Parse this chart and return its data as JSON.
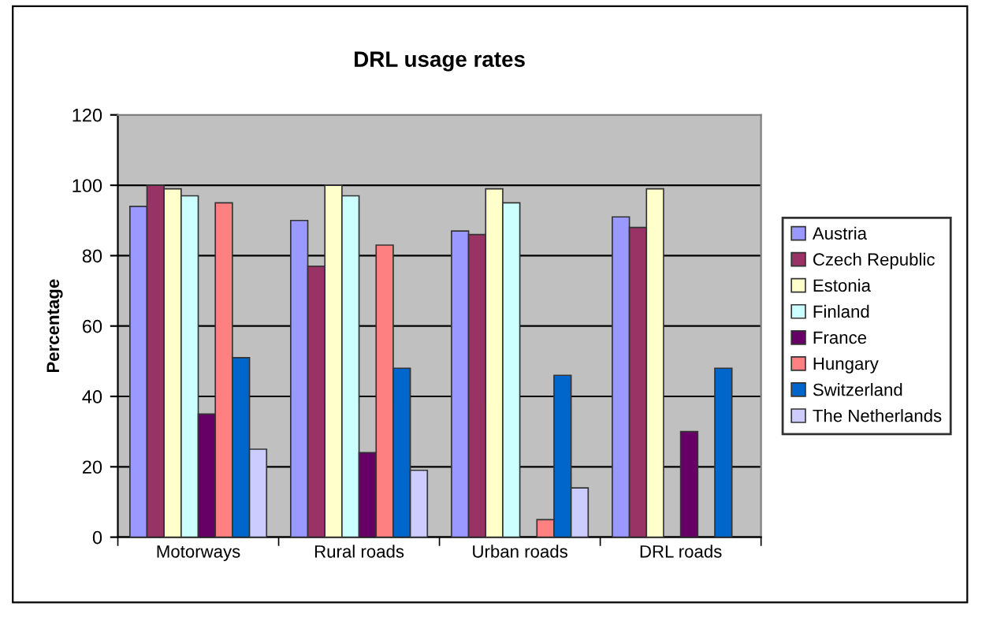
{
  "chart_data": {
    "type": "bar",
    "title": "DRL usage rates",
    "ylabel": "Percentage",
    "categories": [
      "Motorways",
      "Rural roads",
      "Urban roads",
      "DRL roads"
    ],
    "series": [
      {
        "name": "Austria",
        "color": "#9999ff",
        "values": [
          94,
          90,
          87,
          91
        ]
      },
      {
        "name": "Czech Republic",
        "color": "#993366",
        "values": [
          100,
          77,
          86,
          88
        ]
      },
      {
        "name": "Estonia",
        "color": "#ffffcc",
        "values": [
          99,
          100,
          99,
          99
        ]
      },
      {
        "name": "Finland",
        "color": "#ccffff",
        "values": [
          97,
          97,
          95,
          null
        ]
      },
      {
        "name": "France",
        "color": "#660066",
        "values": [
          35,
          24,
          null,
          30
        ]
      },
      {
        "name": "Hungary",
        "color": "#ff8080",
        "values": [
          95,
          83,
          5,
          null
        ]
      },
      {
        "name": "Switzerland",
        "color": "#0066cc",
        "values": [
          51,
          48,
          46,
          48
        ]
      },
      {
        "name": "The Netherlands",
        "color": "#ccccff",
        "values": [
          25,
          19,
          14,
          null
        ]
      }
    ],
    "ylim": [
      0,
      120
    ],
    "yticks": [
      0,
      20,
      40,
      60,
      80,
      100,
      120
    ],
    "grid": "y",
    "legend": "right"
  }
}
